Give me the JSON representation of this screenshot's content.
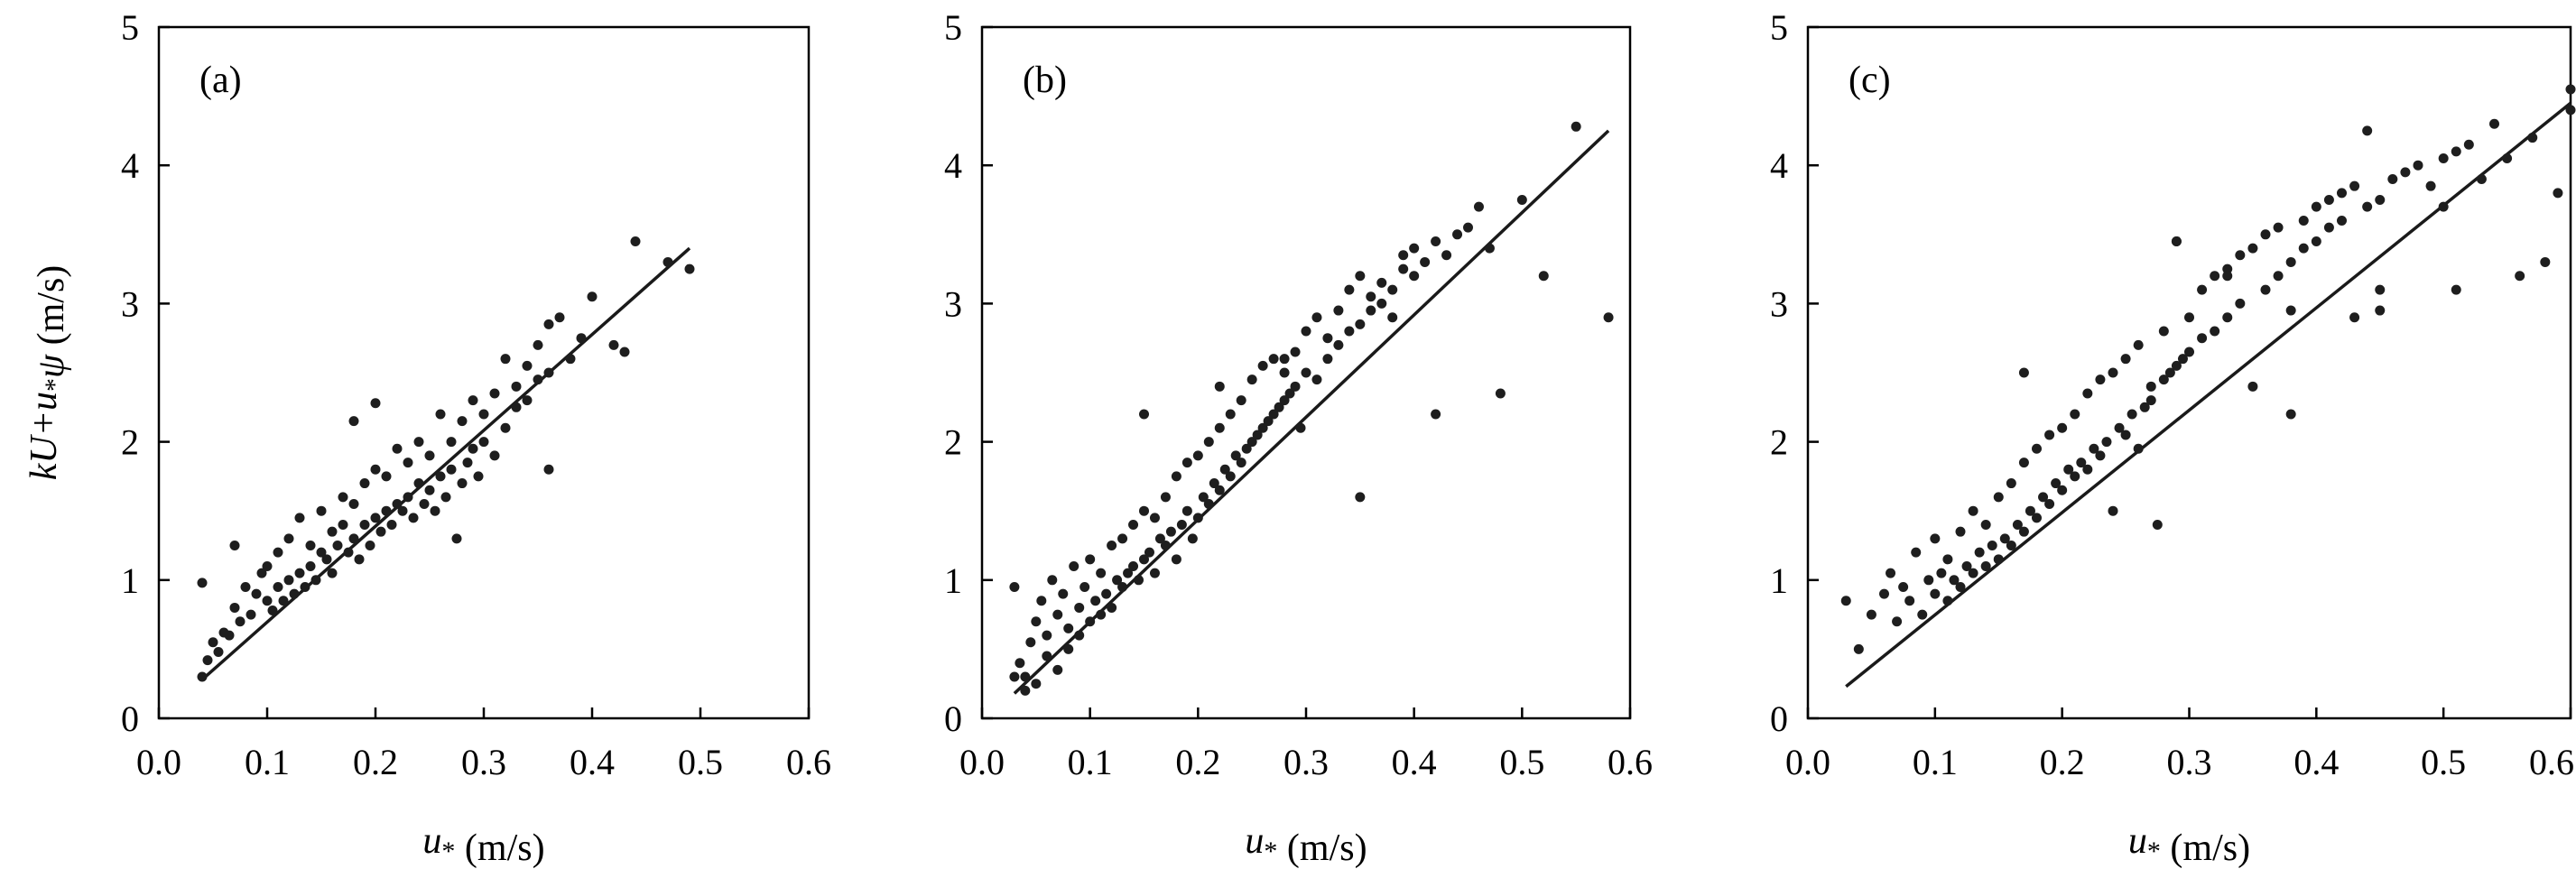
{
  "chart_data": [
    {
      "type": "scatter",
      "panel_label": "(a)",
      "xlabel": "u* (m/s)",
      "ylabel": "kU+u*ψ (m/s)",
      "xlim": [
        0,
        0.6
      ],
      "ylim": [
        0,
        5
      ],
      "xticks": [
        "0.0",
        "0.1",
        "0.2",
        "0.3",
        "0.4",
        "0.5",
        "0.6"
      ],
      "yticks": [
        "0",
        "1",
        "2",
        "3",
        "4",
        "5"
      ],
      "fit_line": [
        [
          0.04,
          0.28
        ],
        [
          0.49,
          3.4
        ]
      ],
      "x": [
        0.04,
        0.045,
        0.05,
        0.055,
        0.06,
        0.065,
        0.07,
        0.075,
        0.08,
        0.085,
        0.09,
        0.095,
        0.1,
        0.1,
        0.105,
        0.11,
        0.11,
        0.115,
        0.12,
        0.12,
        0.125,
        0.13,
        0.13,
        0.135,
        0.14,
        0.14,
        0.145,
        0.15,
        0.15,
        0.155,
        0.16,
        0.16,
        0.165,
        0.17,
        0.17,
        0.175,
        0.18,
        0.18,
        0.185,
        0.19,
        0.19,
        0.195,
        0.2,
        0.2,
        0.205,
        0.21,
        0.21,
        0.215,
        0.22,
        0.22,
        0.225,
        0.23,
        0.23,
        0.235,
        0.24,
        0.24,
        0.245,
        0.25,
        0.25,
        0.255,
        0.26,
        0.26,
        0.265,
        0.27,
        0.27,
        0.275,
        0.28,
        0.28,
        0.285,
        0.29,
        0.29,
        0.295,
        0.3,
        0.3,
        0.31,
        0.31,
        0.32,
        0.32,
        0.33,
        0.33,
        0.34,
        0.34,
        0.35,
        0.35,
        0.36,
        0.36,
        0.37,
        0.38,
        0.39,
        0.4,
        0.42,
        0.43,
        0.44,
        0.47,
        0.49,
        0.04,
        0.07,
        0.18,
        0.2,
        0.36
      ],
      "y": [
        0.3,
        0.42,
        0.55,
        0.48,
        0.62,
        0.6,
        0.8,
        0.7,
        0.95,
        0.75,
        0.9,
        1.05,
        0.85,
        1.1,
        0.78,
        0.95,
        1.2,
        0.85,
        1.0,
        1.3,
        0.9,
        1.05,
        1.45,
        0.95,
        1.1,
        1.25,
        1.0,
        1.2,
        1.5,
        1.15,
        1.05,
        1.35,
        1.25,
        1.4,
        1.6,
        1.2,
        1.3,
        1.55,
        1.15,
        1.4,
        1.7,
        1.25,
        1.45,
        1.8,
        1.35,
        1.5,
        1.75,
        1.4,
        1.55,
        1.95,
        1.5,
        1.6,
        1.85,
        1.45,
        1.7,
        2.0,
        1.55,
        1.65,
        1.9,
        1.5,
        1.75,
        2.2,
        1.6,
        1.8,
        2.0,
        1.3,
        1.7,
        2.15,
        1.85,
        1.95,
        2.3,
        1.75,
        2.0,
        2.2,
        1.9,
        2.35,
        2.1,
        2.6,
        2.25,
        2.4,
        2.3,
        2.55,
        2.45,
        2.7,
        2.5,
        2.85,
        2.9,
        2.6,
        2.75,
        3.05,
        2.7,
        2.65,
        3.45,
        3.3,
        3.25,
        0.98,
        1.25,
        2.15,
        2.28,
        1.8
      ]
    },
    {
      "type": "scatter",
      "panel_label": "(b)",
      "xlabel": "u* (m/s)",
      "ylabel": "",
      "xlim": [
        0,
        0.6
      ],
      "ylim": [
        0,
        5
      ],
      "xticks": [
        "0.0",
        "0.1",
        "0.2",
        "0.3",
        "0.4",
        "0.5",
        "0.6"
      ],
      "yticks": [
        "0",
        "1",
        "2",
        "3",
        "4",
        "5"
      ],
      "fit_line": [
        [
          0.03,
          0.18
        ],
        [
          0.58,
          4.25
        ]
      ],
      "x": [
        0.03,
        0.035,
        0.04,
        0.045,
        0.05,
        0.055,
        0.06,
        0.065,
        0.07,
        0.075,
        0.08,
        0.085,
        0.09,
        0.095,
        0.1,
        0.1,
        0.105,
        0.11,
        0.11,
        0.115,
        0.12,
        0.12,
        0.125,
        0.13,
        0.13,
        0.135,
        0.14,
        0.14,
        0.145,
        0.15,
        0.15,
        0.155,
        0.16,
        0.16,
        0.165,
        0.17,
        0.17,
        0.175,
        0.18,
        0.18,
        0.185,
        0.19,
        0.19,
        0.195,
        0.2,
        0.2,
        0.205,
        0.21,
        0.21,
        0.215,
        0.22,
        0.22,
        0.225,
        0.23,
        0.23,
        0.235,
        0.24,
        0.24,
        0.245,
        0.25,
        0.25,
        0.255,
        0.26,
        0.26,
        0.265,
        0.27,
        0.27,
        0.275,
        0.28,
        0.28,
        0.285,
        0.29,
        0.29,
        0.295,
        0.3,
        0.3,
        0.31,
        0.31,
        0.32,
        0.32,
        0.33,
        0.33,
        0.34,
        0.34,
        0.35,
        0.35,
        0.36,
        0.36,
        0.37,
        0.37,
        0.38,
        0.38,
        0.39,
        0.39,
        0.4,
        0.4,
        0.41,
        0.42,
        0.43,
        0.44,
        0.45,
        0.46,
        0.47,
        0.48,
        0.5,
        0.52,
        0.55,
        0.58,
        0.03,
        0.04,
        0.05,
        0.06,
        0.07,
        0.08,
        0.09,
        0.15,
        0.22,
        0.28,
        0.35,
        0.42
      ],
      "y": [
        0.95,
        0.4,
        0.3,
        0.55,
        0.7,
        0.85,
        0.6,
        1.0,
        0.75,
        0.9,
        0.65,
        1.1,
        0.8,
        0.95,
        0.7,
        1.15,
        0.85,
        0.75,
        1.05,
        0.9,
        0.8,
        1.25,
        1.0,
        0.95,
        1.3,
        1.05,
        1.1,
        1.4,
        1.0,
        1.15,
        1.5,
        1.2,
        1.05,
        1.45,
        1.3,
        1.25,
        1.6,
        1.35,
        1.15,
        1.75,
        1.4,
        1.5,
        1.85,
        1.3,
        1.45,
        1.9,
        1.6,
        1.55,
        2.0,
        1.7,
        1.65,
        2.1,
        1.8,
        1.75,
        2.2,
        1.9,
        1.85,
        2.3,
        1.95,
        2.0,
        2.45,
        2.05,
        2.1,
        2.55,
        2.15,
        2.2,
        2.6,
        2.25,
        2.3,
        2.5,
        2.35,
        2.4,
        2.65,
        2.1,
        2.5,
        2.8,
        2.45,
        2.9,
        2.6,
        2.75,
        2.7,
        2.95,
        2.8,
        3.1,
        2.85,
        3.2,
        2.95,
        3.05,
        3.0,
        3.15,
        3.1,
        2.9,
        3.25,
        3.35,
        3.2,
        3.4,
        3.3,
        3.45,
        3.35,
        3.5,
        3.55,
        3.7,
        3.4,
        2.35,
        3.75,
        3.2,
        4.28,
        2.9,
        0.3,
        0.2,
        0.25,
        0.45,
        0.35,
        0.5,
        0.6,
        2.2,
        2.4,
        2.6,
        1.6,
        2.2
      ]
    },
    {
      "type": "scatter",
      "panel_label": "(c)",
      "xlabel": "u* (m/s)",
      "ylabel": "",
      "xlim": [
        0,
        0.6
      ],
      "ylim": [
        0,
        5
      ],
      "xticks": [
        "0.0",
        "0.1",
        "0.2",
        "0.3",
        "0.4",
        "0.5",
        "0.6"
      ],
      "yticks": [
        "0",
        "1",
        "2",
        "3",
        "4",
        "5"
      ],
      "fit_line": [
        [
          0.03,
          0.23
        ],
        [
          0.6,
          4.45
        ]
      ],
      "x": [
        0.03,
        0.04,
        0.05,
        0.06,
        0.065,
        0.07,
        0.075,
        0.08,
        0.085,
        0.09,
        0.095,
        0.1,
        0.1,
        0.105,
        0.11,
        0.11,
        0.115,
        0.12,
        0.12,
        0.125,
        0.13,
        0.13,
        0.135,
        0.14,
        0.14,
        0.145,
        0.15,
        0.15,
        0.155,
        0.16,
        0.16,
        0.165,
        0.17,
        0.17,
        0.175,
        0.18,
        0.18,
        0.185,
        0.19,
        0.19,
        0.195,
        0.2,
        0.2,
        0.205,
        0.21,
        0.21,
        0.215,
        0.22,
        0.22,
        0.225,
        0.23,
        0.23,
        0.235,
        0.24,
        0.24,
        0.245,
        0.25,
        0.25,
        0.255,
        0.26,
        0.26,
        0.265,
        0.27,
        0.27,
        0.275,
        0.28,
        0.28,
        0.285,
        0.29,
        0.29,
        0.295,
        0.3,
        0.3,
        0.31,
        0.31,
        0.32,
        0.32,
        0.33,
        0.33,
        0.34,
        0.34,
        0.35,
        0.35,
        0.36,
        0.36,
        0.37,
        0.37,
        0.38,
        0.38,
        0.39,
        0.39,
        0.4,
        0.4,
        0.41,
        0.41,
        0.42,
        0.42,
        0.43,
        0.43,
        0.44,
        0.44,
        0.45,
        0.45,
        0.46,
        0.47,
        0.48,
        0.49,
        0.5,
        0.5,
        0.51,
        0.52,
        0.53,
        0.54,
        0.55,
        0.56,
        0.57,
        0.58,
        0.59,
        0.6,
        0.6,
        0.17,
        0.29,
        0.33,
        0.38,
        0.45,
        0.51
      ],
      "y": [
        0.85,
        0.5,
        0.75,
        0.9,
        1.05,
        0.7,
        0.95,
        0.85,
        1.2,
        0.75,
        1.0,
        0.9,
        1.3,
        1.05,
        0.85,
        1.15,
        1.0,
        0.95,
        1.35,
        1.1,
        1.05,
        1.5,
        1.2,
        1.1,
        1.4,
        1.25,
        1.15,
        1.6,
        1.3,
        1.25,
        1.7,
        1.4,
        1.35,
        1.85,
        1.5,
        1.45,
        1.95,
        1.6,
        1.55,
        2.05,
        1.7,
        1.65,
        2.1,
        1.8,
        1.75,
        2.2,
        1.85,
        1.8,
        2.35,
        1.95,
        1.9,
        2.45,
        2.0,
        1.5,
        2.5,
        2.1,
        2.05,
        2.6,
        2.2,
        1.95,
        2.7,
        2.25,
        2.3,
        2.4,
        1.4,
        2.45,
        2.8,
        2.5,
        2.55,
        3.45,
        2.6,
        2.65,
        2.9,
        2.75,
        3.1,
        2.8,
        3.2,
        2.9,
        3.25,
        3.0,
        3.35,
        2.4,
        3.4,
        3.1,
        3.5,
        3.2,
        3.55,
        2.95,
        3.3,
        3.6,
        3.4,
        3.7,
        3.45,
        3.75,
        3.55,
        3.8,
        3.6,
        2.9,
        3.85,
        3.7,
        4.25,
        3.75,
        3.1,
        3.9,
        3.95,
        4.0,
        3.85,
        4.05,
        3.7,
        4.1,
        4.15,
        3.9,
        4.3,
        4.05,
        3.2,
        4.2,
        3.3,
        3.8,
        4.4,
        4.55,
        2.5,
        3.45,
        3.2,
        2.2,
        2.95,
        3.1
      ]
    }
  ]
}
